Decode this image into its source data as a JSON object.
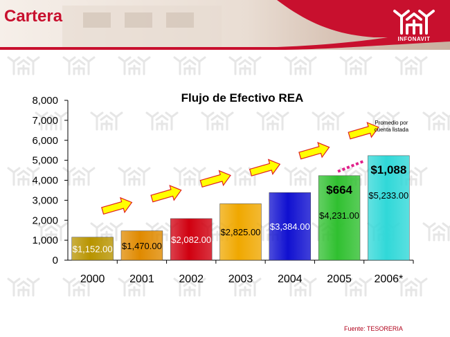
{
  "header": {
    "title": "Cartera",
    "logo_label": "INFONAVIT"
  },
  "chart_data": {
    "type": "bar",
    "title": "Flujo de Efectivo REA",
    "categories": [
      "2000",
      "2001",
      "2002",
      "2003",
      "2004",
      "2005",
      "2006*"
    ],
    "values": [
      1152,
      1470,
      2082,
      2825,
      3384,
      4231,
      5233
    ],
    "value_labels": [
      "$1,152.00",
      "$1,470.00",
      "$2,082.00",
      "$2,825.00",
      "$3,384.00",
      "$4,231.00",
      "$5,233.00"
    ],
    "bar_colors": [
      "#b89400",
      "#e08a00",
      "#d00010",
      "#f0a800",
      "#1010d0",
      "#30c030",
      "#30d8d8"
    ],
    "yticks": [
      "8,000",
      "7,000",
      "6,000",
      "5,000",
      "4,000",
      "3,000",
      "2,000",
      "1,000",
      "0"
    ],
    "ylim": [
      0,
      8000
    ],
    "grid": false,
    "annotations": {
      "avg_2005": "$664",
      "avg_2006": "$1,088",
      "note": "Promedio por cuenta listada"
    },
    "growth_arrow_color": "#ffff00"
  },
  "footer": {
    "source": "Fuente: TESORERIA"
  }
}
